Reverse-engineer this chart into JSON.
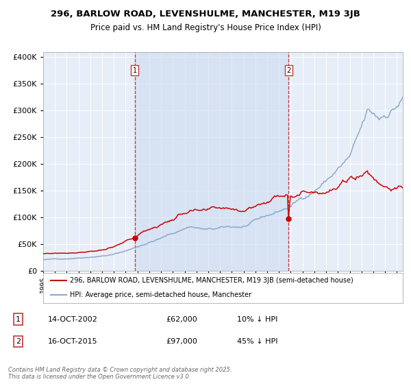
{
  "title1": "296, BARLOW ROAD, LEVENSHULME, MANCHESTER, M19 3JB",
  "title2": "Price paid vs. HM Land Registry's House Price Index (HPI)",
  "legend_line1": "296, BARLOW ROAD, LEVENSHULME, MANCHESTER, M19 3JB (semi-detached house)",
  "legend_line2": "HPI: Average price, semi-detached house, Manchester",
  "annotation1_date": "14-OCT-2002",
  "annotation1_price": "£62,000",
  "annotation1_hpi": "10% ↓ HPI",
  "annotation2_date": "16-OCT-2015",
  "annotation2_price": "£97,000",
  "annotation2_hpi": "45% ↓ HPI",
  "footer": "Contains HM Land Registry data © Crown copyright and database right 2025.\nThis data is licensed under the Open Government Licence v3.0.",
  "purchase1_year": 2002.79,
  "purchase1_price": 62000,
  "purchase2_year": 2015.79,
  "purchase2_price": 97000,
  "red_line_color": "#cc0000",
  "blue_line_color": "#88aacc",
  "dashed_color": "#cc0000",
  "yticks": [
    0,
    50000,
    100000,
    150000,
    200000,
    250000,
    300000,
    350000,
    400000
  ],
  "ytick_labels": [
    "£0",
    "£50K",
    "£100K",
    "£150K",
    "£200K",
    "£250K",
    "£300K",
    "£350K",
    "£400K"
  ],
  "ylim": [
    0,
    410000
  ],
  "xlim_start": 1995,
  "xlim_end": 2025.5
}
